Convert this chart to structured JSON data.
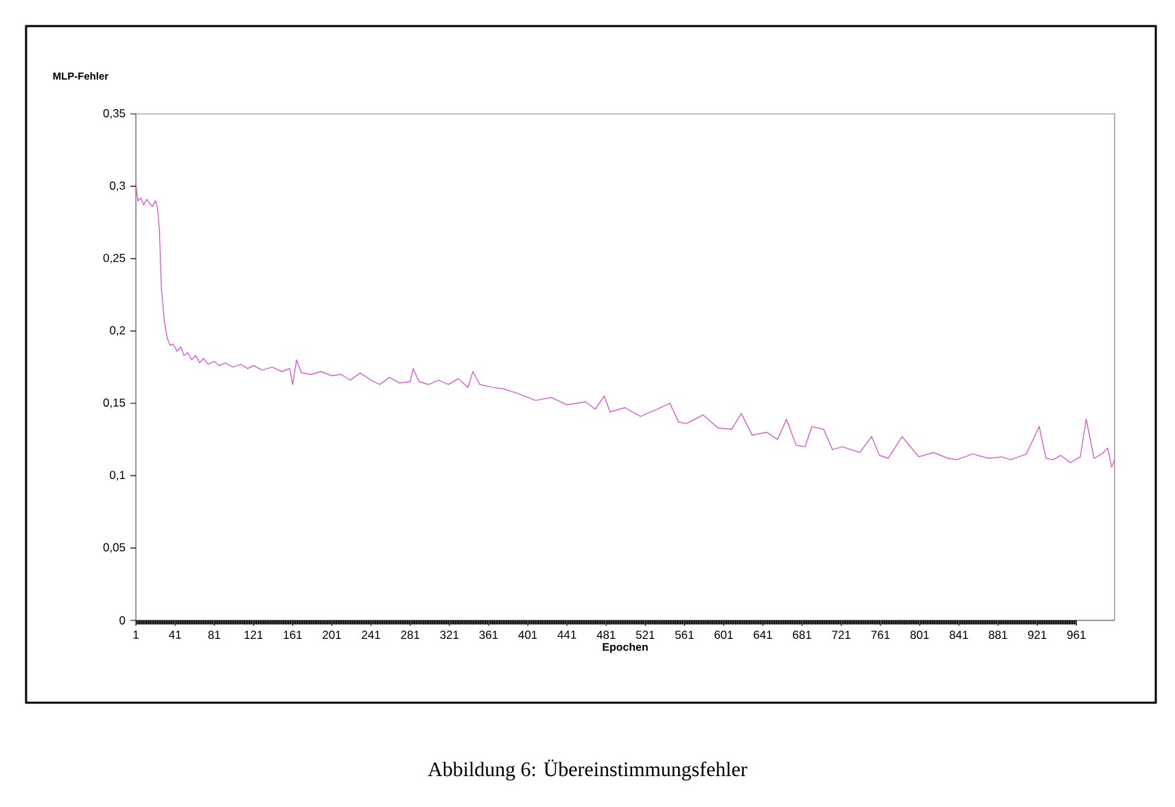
{
  "chart_data": {
    "type": "line",
    "xlabel": "Epochen",
    "ylabel": "MLP-Fehler",
    "annotations": [
      "Abbildung 6: Übereinstimmungsfehler"
    ],
    "xlim": [
      1,
      1000
    ],
    "ylim": [
      0,
      0.35
    ],
    "xticks": [
      1,
      41,
      81,
      121,
      161,
      201,
      241,
      281,
      321,
      361,
      401,
      441,
      481,
      521,
      561,
      601,
      641,
      681,
      721,
      761,
      801,
      841,
      881,
      921,
      961
    ],
    "yticks": [
      {
        "value": 0,
        "label": "0"
      },
      {
        "value": 0.05,
        "label": "0,05"
      },
      {
        "value": 0.1,
        "label": "0,1"
      },
      {
        "value": 0.15,
        "label": "0,15"
      },
      {
        "value": 0.2,
        "label": "0,2"
      },
      {
        "value": 0.25,
        "label": "0,25"
      },
      {
        "value": 0.3,
        "label": "0,3"
      },
      {
        "value": 0.35,
        "label": "0,35"
      }
    ],
    "marker": "none",
    "line_style": "solid",
    "series": [
      {
        "color": "#e03fd4",
        "x": [
          1,
          3,
          6,
          9,
          12,
          15,
          18,
          21,
          23,
          25,
          27,
          30,
          33,
          36,
          39,
          43,
          47,
          50,
          54,
          58,
          62,
          66,
          70,
          75,
          81,
          86,
          92,
          100,
          108,
          115,
          121,
          130,
          140,
          150,
          158,
          161,
          165,
          170,
          180,
          190,
          201,
          210,
          220,
          230,
          241,
          250,
          260,
          270,
          281,
          284,
          290,
          300,
          310,
          320,
          330,
          340,
          345,
          352,
          365,
          376,
          390,
          409,
          425,
          441,
          460,
          470,
          479,
          485,
          500,
          516,
          530,
          546,
          555,
          563,
          580,
          595,
          609,
          619,
          630,
          645,
          656,
          665,
          675,
          684,
          691,
          703,
          712,
          722,
          740,
          752,
          760,
          769,
          783,
          800,
          815,
          830,
          839,
          855,
          871,
          885,
          894,
          910,
          923,
          930,
          937,
          945,
          955,
          965,
          971,
          979,
          987,
          993,
          997,
          1000
        ],
        "values": [
          0.301,
          0.29,
          0.292,
          0.287,
          0.291,
          0.288,
          0.286,
          0.29,
          0.285,
          0.27,
          0.23,
          0.207,
          0.195,
          0.19,
          0.191,
          0.186,
          0.189,
          0.183,
          0.185,
          0.18,
          0.183,
          0.178,
          0.181,
          0.177,
          0.179,
          0.176,
          0.178,
          0.175,
          0.177,
          0.174,
          0.176,
          0.173,
          0.175,
          0.172,
          0.174,
          0.163,
          0.18,
          0.171,
          0.17,
          0.172,
          0.169,
          0.17,
          0.166,
          0.171,
          0.166,
          0.163,
          0.168,
          0.164,
          0.165,
          0.174,
          0.165,
          0.163,
          0.166,
          0.163,
          0.167,
          0.161,
          0.172,
          0.163,
          0.161,
          0.16,
          0.157,
          0.152,
          0.154,
          0.149,
          0.151,
          0.146,
          0.155,
          0.144,
          0.147,
          0.141,
          0.145,
          0.15,
          0.137,
          0.136,
          0.142,
          0.133,
          0.132,
          0.143,
          0.128,
          0.13,
          0.125,
          0.139,
          0.121,
          0.12,
          0.134,
          0.132,
          0.118,
          0.12,
          0.116,
          0.127,
          0.114,
          0.112,
          0.127,
          0.113,
          0.116,
          0.112,
          0.111,
          0.115,
          0.112,
          0.113,
          0.111,
          0.115,
          0.134,
          0.112,
          0.111,
          0.114,
          0.109,
          0.113,
          0.139,
          0.112,
          0.115,
          0.119,
          0.106,
          0.111
        ]
      }
    ]
  }
}
